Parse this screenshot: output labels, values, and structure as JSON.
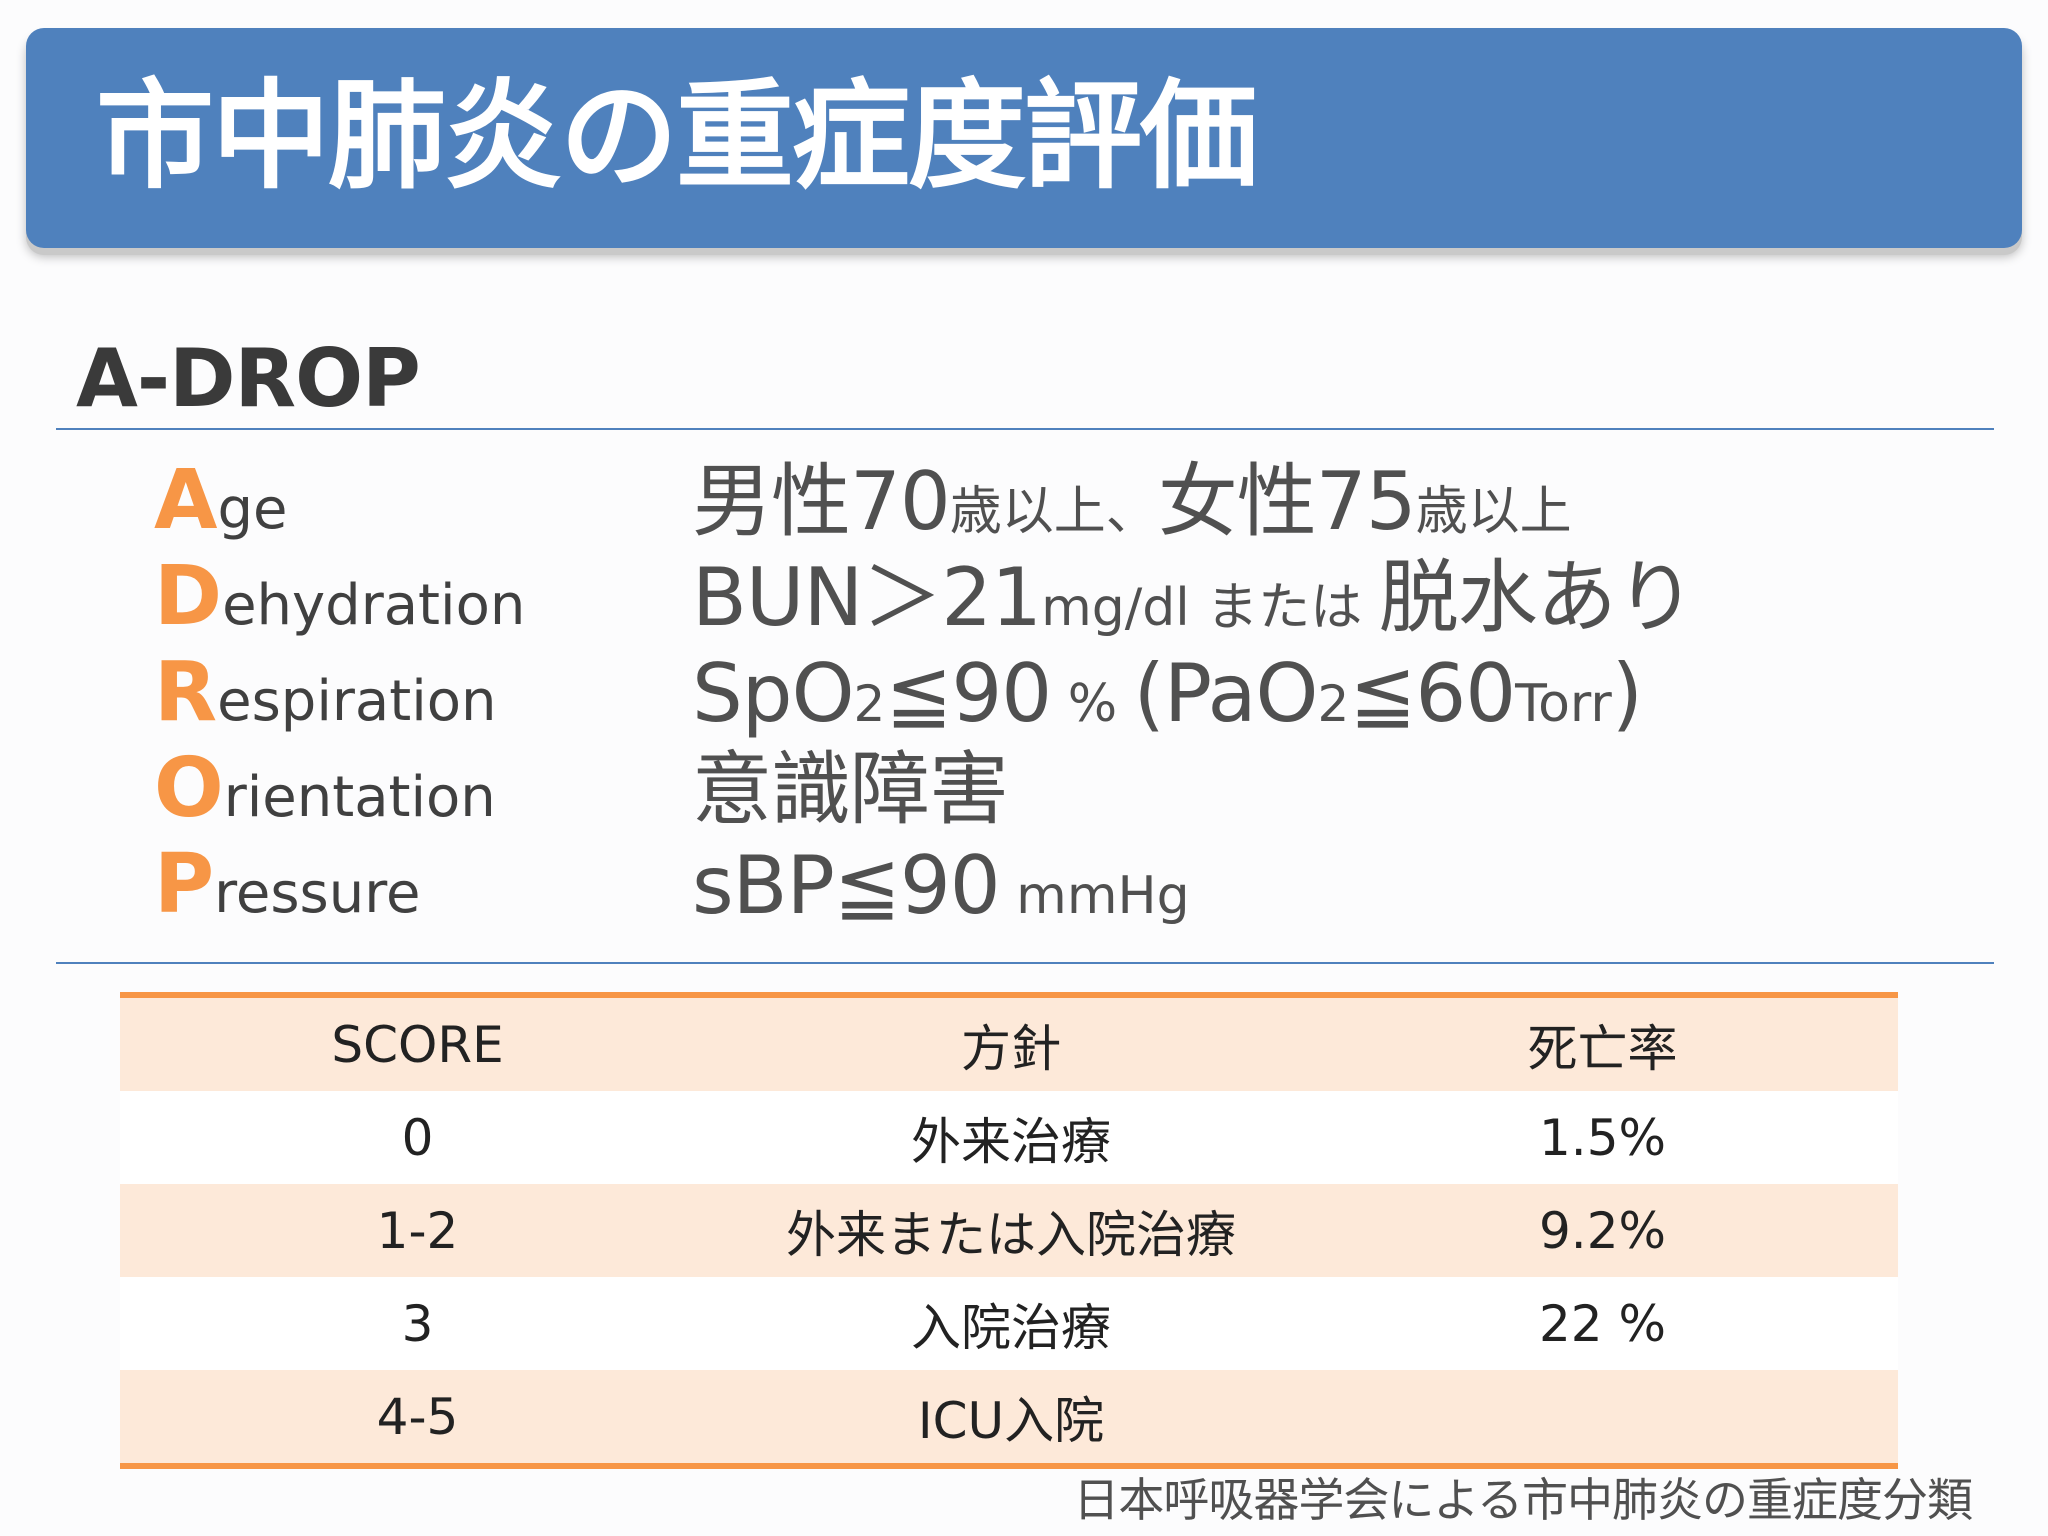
{
  "title": "市中肺炎の重症度評価",
  "section_heading": "A-DROP",
  "criteria": [
    {
      "initial": "A",
      "rest": "ge",
      "desc": [
        [
          "big",
          "男性70"
        ],
        [
          "sm",
          "歳以上、"
        ],
        [
          "big",
          "女性75"
        ],
        [
          "sm",
          "歳以上"
        ]
      ]
    },
    {
      "initial": "D",
      "rest": "ehydration",
      "desc": [
        [
          "big",
          "BUN＞21"
        ],
        [
          "sm",
          "mg/dl または "
        ],
        [
          "big",
          "脱水あり"
        ]
      ]
    },
    {
      "initial": "R",
      "rest": "espiration",
      "desc": [
        [
          "big",
          "SpO"
        ],
        [
          "xs",
          "2"
        ],
        [
          "big",
          "≦90"
        ],
        [
          "sm",
          " % "
        ],
        [
          "big",
          "(PaO"
        ],
        [
          "xs",
          "2"
        ],
        [
          "big",
          "≦60"
        ],
        [
          "sm",
          "Torr"
        ],
        [
          "big",
          ")"
        ]
      ]
    },
    {
      "initial": "O",
      "rest": "rientation",
      "desc": [
        [
          "big",
          "意識障害"
        ]
      ]
    },
    {
      "initial": "P",
      "rest": "ressure",
      "desc": [
        [
          "big",
          "sBP≦90"
        ],
        [
          "sm",
          " mmHg"
        ]
      ]
    }
  ],
  "table": {
    "headers": [
      "SCORE",
      "方針",
      "死亡率"
    ],
    "rows": [
      [
        "0",
        "外来治療",
        "1.5%"
      ],
      [
        "1-2",
        "外来または入院治療",
        "9.2%"
      ],
      [
        "3",
        "入院治療",
        "22 %"
      ],
      [
        "4-5",
        "ICU入院",
        ""
      ]
    ]
  },
  "footnote": "日本呼吸器学会による市中肺炎の重症度分類",
  "colors": {
    "title_bar": "#4f81bd",
    "accent_orange": "#f79646",
    "row_shade": "#fde9d9"
  }
}
